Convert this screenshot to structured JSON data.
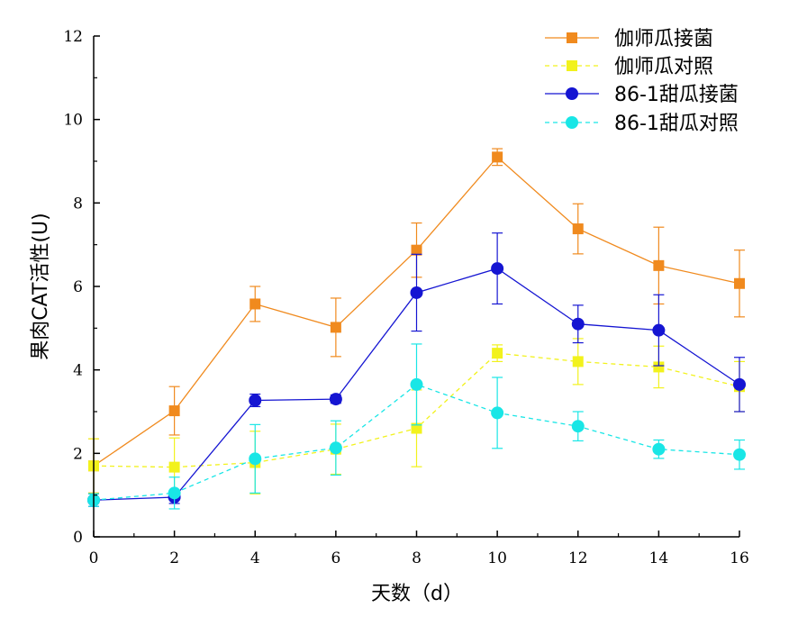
{
  "chart_data": {
    "type": "line",
    "title": "",
    "xlabel": "天数（d）",
    "ylabel": "果肉CAT活性(U)",
    "x": [
      0,
      2,
      4,
      6,
      8,
      10,
      12,
      14,
      16
    ],
    "xlim": [
      0,
      16
    ],
    "ylim": [
      0,
      12
    ],
    "xticks": [
      0,
      2,
      4,
      6,
      8,
      10,
      12,
      14,
      16
    ],
    "yticks": [
      0,
      2,
      4,
      6,
      8,
      10,
      12
    ],
    "grid": false,
    "legend_position": "top-right",
    "series": [
      {
        "name": "伽师瓜接菌",
        "color": "#F08A1E",
        "marker": "square",
        "line_style": "solid",
        "values": [
          1.7,
          3.02,
          5.58,
          5.02,
          6.87,
          9.1,
          7.38,
          6.5,
          6.07
        ],
        "error": [
          0.65,
          0.58,
          0.42,
          0.7,
          0.65,
          0.2,
          0.6,
          0.92,
          0.8
        ]
      },
      {
        "name": "伽师瓜对照",
        "color": "#F2F21C",
        "marker": "square",
        "line_style": "dashed",
        "values": [
          1.7,
          1.67,
          1.78,
          2.1,
          2.6,
          4.4,
          4.2,
          4.07,
          3.6
        ],
        "error": [
          0.65,
          0.7,
          0.75,
          0.6,
          0.92,
          0.2,
          0.55,
          0.5,
          0.6
        ]
      },
      {
        "name": "86-1甜瓜接菌",
        "color": "#1515D2",
        "marker": "circle",
        "line_style": "solid",
        "values": [
          0.88,
          0.95,
          3.27,
          3.3,
          5.85,
          6.43,
          5.1,
          4.95,
          3.65
        ],
        "error": [
          0.15,
          0.15,
          0.15,
          0.1,
          0.92,
          0.85,
          0.45,
          0.85,
          0.65
        ]
      },
      {
        "name": "86-1甜瓜对照",
        "color": "#19E6E6",
        "marker": "circle",
        "line_style": "dashed",
        "values": [
          0.88,
          1.05,
          1.87,
          2.13,
          3.65,
          2.97,
          2.65,
          2.1,
          1.97
        ],
        "error": [
          0.15,
          0.38,
          0.82,
          0.65,
          0.97,
          0.85,
          0.35,
          0.22,
          0.35
        ]
      }
    ]
  }
}
